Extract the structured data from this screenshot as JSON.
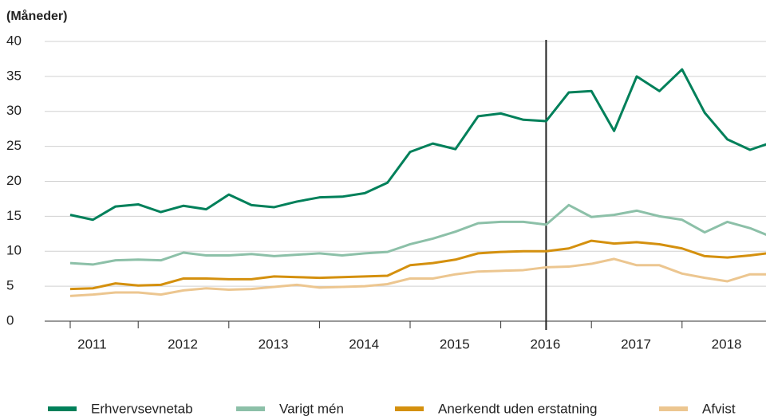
{
  "chart_data": {
    "type": "line",
    "y_label": "(Måneder)",
    "categories": [
      null,
      null,
      null,
      null,
      null,
      null,
      null,
      null,
      null,
      null,
      null,
      null,
      null,
      null,
      null,
      null,
      null,
      null,
      null,
      null,
      null,
      null,
      null,
      null,
      null,
      null,
      null,
      null,
      null,
      null,
      null,
      null
    ],
    "year_labels": [
      "2011",
      "2012",
      "2013",
      "2014",
      "2015",
      "2016",
      "2017",
      "2018"
    ],
    "vline": 21,
    "ylim": [
      0,
      40
    ],
    "yticks": [
      0,
      5,
      10,
      15,
      20,
      25,
      30,
      35,
      40
    ],
    "grid": true,
    "legend": "bottom",
    "series": [
      {
        "name": "Erhvervsevnetab",
        "color": "#00805a",
        "values": [
          15.2,
          14.5,
          16.4,
          16.7,
          15.6,
          16.5,
          16.0,
          18.1,
          16.6,
          16.3,
          17.1,
          17.7,
          17.8,
          18.3,
          19.8,
          24.2,
          25.4,
          24.6,
          29.3,
          29.7,
          28.8,
          28.6,
          32.7,
          32.9,
          27.2,
          35.0,
          32.9,
          36.0,
          29.8,
          26.0,
          24.5,
          25.6
        ]
      },
      {
        "name": "Varigt mén",
        "color": "#8cc0a8",
        "values": [
          8.3,
          8.1,
          8.7,
          8.8,
          8.7,
          9.8,
          9.4,
          9.4,
          9.6,
          9.3,
          9.5,
          9.7,
          9.4,
          9.7,
          9.9,
          11.0,
          11.8,
          12.8,
          14.0,
          14.2,
          14.2,
          13.8,
          16.6,
          14.9,
          15.2,
          15.8,
          15.0,
          14.5,
          12.7,
          14.2,
          13.3,
          12.0
        ]
      },
      {
        "name": "Anerkendt uden erstatning",
        "color": "#d4900e",
        "values": [
          4.6,
          4.7,
          5.4,
          5.1,
          5.2,
          6.1,
          6.1,
          6.0,
          6.0,
          6.4,
          6.3,
          6.2,
          6.3,
          6.4,
          6.5,
          8.0,
          8.3,
          8.8,
          9.7,
          9.9,
          10.0,
          10.0,
          10.4,
          11.5,
          11.1,
          11.3,
          11.0,
          10.4,
          9.3,
          9.1,
          9.4,
          9.8
        ]
      },
      {
        "name": "Afvist",
        "color": "#ecc690",
        "values": [
          3.6,
          3.8,
          4.1,
          4.1,
          3.8,
          4.4,
          4.7,
          4.5,
          4.6,
          4.9,
          5.2,
          4.8,
          4.9,
          5.0,
          5.3,
          6.1,
          6.1,
          6.7,
          7.1,
          7.2,
          7.3,
          7.7,
          7.8,
          8.2,
          8.9,
          8.0,
          8.0,
          6.8,
          6.2,
          5.7,
          6.7,
          6.7
        ]
      }
    ]
  }
}
